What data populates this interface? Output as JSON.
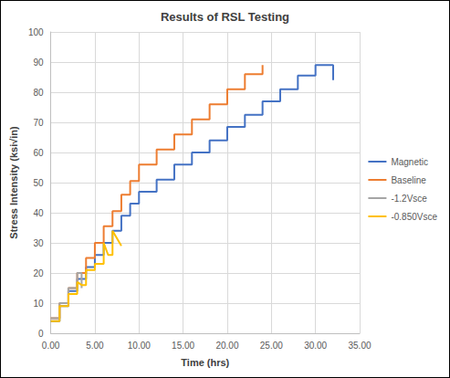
{
  "chart_data": {
    "type": "line",
    "title": "Results of RSL Testing",
    "x_label": "Time (hrs)",
    "y_label": "Stress Intensity (ksi√in)",
    "xlim": [
      0,
      35
    ],
    "xticks": [
      {
        "value": 0,
        "label": "0.00"
      },
      {
        "value": 5,
        "label": "5.00"
      },
      {
        "value": 10,
        "label": "10.00"
      },
      {
        "value": 15,
        "label": "15.00"
      },
      {
        "value": 20,
        "label": "20.00"
      },
      {
        "value": 25,
        "label": "25.00"
      },
      {
        "value": 30,
        "label": "30.00"
      },
      {
        "value": 35,
        "label": "35.00"
      }
    ],
    "ylim": [
      0,
      100
    ],
    "yticks": [
      0,
      10,
      20,
      30,
      40,
      50,
      60,
      70,
      80,
      90,
      100
    ],
    "grid": true,
    "legend": "right",
    "series": [
      {
        "name": "Magnetic",
        "color": "#4472c4",
        "x": [
          0,
          1,
          1,
          2,
          2,
          3,
          3,
          4,
          4,
          5,
          5,
          6,
          6,
          7,
          7,
          8,
          8,
          9,
          9,
          10,
          10,
          12,
          12,
          14,
          14,
          16,
          16,
          18,
          18,
          20,
          20,
          22,
          22,
          24,
          24,
          26,
          26,
          28,
          28,
          30,
          30,
          32,
          32
        ],
        "values": [
          4,
          4,
          9,
          9,
          14,
          14,
          18,
          18,
          22,
          22,
          26,
          26,
          30,
          30,
          34,
          34,
          39,
          39,
          43,
          43,
          47,
          47,
          51,
          51,
          56,
          56,
          60,
          60,
          64,
          64,
          68.5,
          68.5,
          72.5,
          72.5,
          77,
          77,
          81,
          81,
          85.5,
          85.5,
          89,
          89,
          84
        ]
      },
      {
        "name": "Baseline",
        "color": "#ed7d31",
        "x": [
          0,
          1,
          1,
          2,
          2,
          3,
          3,
          4,
          4,
          5,
          5,
          6,
          6,
          7,
          7,
          8,
          8,
          9,
          9,
          10,
          10,
          12,
          12,
          14,
          14,
          16,
          16,
          18,
          18,
          20,
          20,
          22,
          22,
          24,
          24
        ],
        "values": [
          5,
          5,
          10,
          10,
          15,
          15,
          20,
          20,
          25,
          25,
          30,
          30,
          35.5,
          35.5,
          40.5,
          40.5,
          46,
          46,
          50.5,
          50.5,
          56,
          56,
          61,
          61,
          66,
          66,
          71,
          71,
          76,
          76,
          81,
          81,
          86,
          86,
          89
        ]
      },
      {
        "name": "-1.2Vsce",
        "color": "#a5a5a5",
        "x": [
          0,
          1,
          1,
          2,
          2,
          3,
          3,
          3.5,
          3.5
        ],
        "values": [
          5,
          5,
          10,
          10,
          15,
          15,
          20,
          20,
          15
        ]
      },
      {
        "name": "-0.850Vsce",
        "color": "#ffc000",
        "x": [
          0,
          1,
          1,
          2,
          2,
          3,
          3,
          3.5,
          4,
          4,
          5,
          5,
          6,
          6,
          6.5,
          7,
          7,
          8
        ],
        "values": [
          4,
          4,
          9,
          9,
          13,
          13,
          17,
          16,
          16,
          21,
          21,
          23,
          23,
          30,
          26,
          26,
          34,
          29
        ]
      }
    ]
  }
}
